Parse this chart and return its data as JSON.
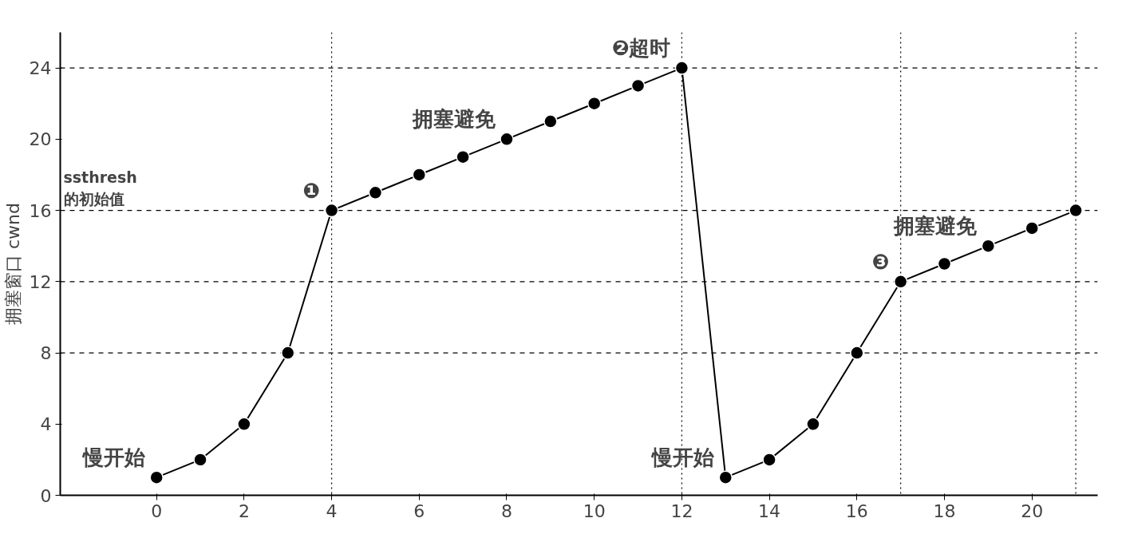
{
  "chart_data": {
    "type": "line",
    "ylabel": "拥塞窗口 cwnd",
    "x": [
      0,
      1,
      2,
      3,
      4,
      5,
      6,
      7,
      8,
      9,
      10,
      11,
      12,
      13,
      14,
      15,
      16,
      17,
      18,
      19,
      20,
      21
    ],
    "series": [
      {
        "color": "#000000",
        "values": [
          1,
          2,
          4,
          8,
          16,
          17,
          18,
          19,
          20,
          21,
          22,
          23,
          24,
          1,
          2,
          4,
          8,
          12,
          13,
          14,
          15,
          16
        ]
      }
    ],
    "xlim": [
      -2.2,
      21.5
    ],
    "ylim": [
      0,
      26
    ],
    "xticks": [
      0,
      2,
      4,
      6,
      8,
      10,
      12,
      14,
      16,
      18,
      20
    ],
    "yticks": [
      0,
      4,
      8,
      12,
      16,
      20,
      24
    ],
    "grid": false,
    "marker": "circle",
    "line_style": "solid",
    "ref_lines": [
      {
        "axis": "y",
        "value": 24,
        "line_style": "dashed"
      },
      {
        "axis": "y",
        "value": 16,
        "label": "ssthresh\n的初始值",
        "line_style": "dashed"
      },
      {
        "axis": "y",
        "value": 12,
        "line_style": "dashed"
      },
      {
        "axis": "y",
        "value": 8,
        "line_style": "dashed"
      },
      {
        "axis": "x",
        "value": 4,
        "line_style": "dotted"
      },
      {
        "axis": "x",
        "value": 12,
        "line_style": "dotted"
      },
      {
        "axis": "x",
        "value": 17,
        "line_style": "dotted"
      },
      {
        "axis": "x",
        "value": 21,
        "line_style": "dotted"
      }
    ],
    "annotations": [
      {
        "text": "慢开始",
        "x": 0,
        "y": 1
      },
      {
        "text": "❶",
        "x": 4,
        "y": 16
      },
      {
        "text": "拥塞避免",
        "x": 8,
        "y": 20
      },
      {
        "text": "❷超时",
        "x": 12,
        "y": 24
      },
      {
        "text": "慢开始",
        "x": 13,
        "y": 1
      },
      {
        "text": "❸",
        "x": 17,
        "y": 12
      },
      {
        "text": "拥塞避免",
        "x": 19,
        "y": 14
      }
    ]
  }
}
